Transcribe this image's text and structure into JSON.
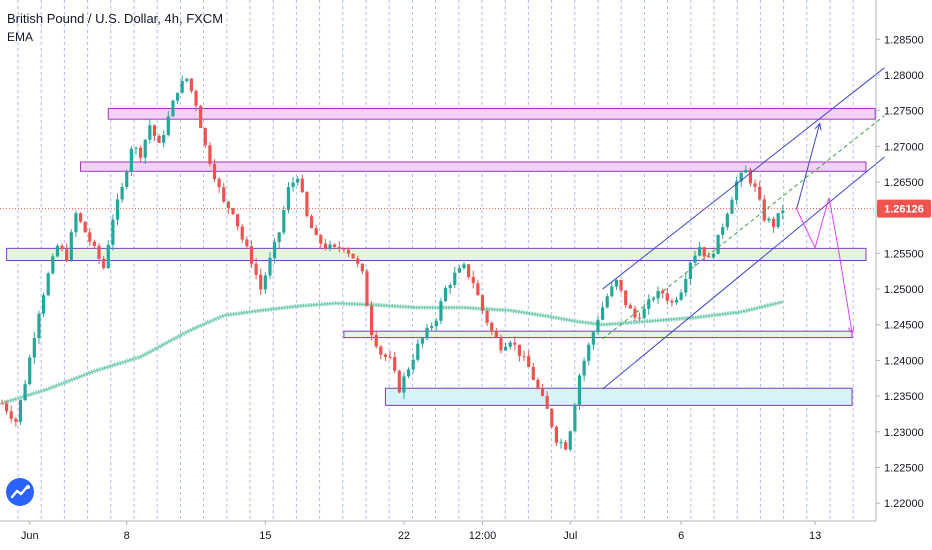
{
  "header": {
    "title": "British Pound / U.S. Dollar, 4h, FXCM",
    "indicator": "EMA"
  },
  "colors": {
    "up": "#26a69a",
    "down": "#ef5350",
    "ema": "#7ecfb5",
    "resistance_fill": "#f3d3f5",
    "resistance_border": "#a531c7",
    "support_fill": "#e3f5dc",
    "support_border": "#7b3fc2",
    "support2_fill": "#d6f3f8",
    "channel": "#3f47c8",
    "projection_blue": "#3f47c8",
    "projection_pink": "#e040fb",
    "current_price": "#ef5350",
    "grid_vertical": "#8fa3ff"
  },
  "chart_data": {
    "type": "candlestick",
    "symbol": "British Pound / U.S. Dollar",
    "interval": "4h",
    "source": "FXCM",
    "indicator": "EMA",
    "ylim": [
      1.2175,
      1.2905
    ],
    "y_ticks": [
      "1.28500",
      "1.28000",
      "1.27500",
      "1.27000",
      "1.26500",
      "1.26000",
      "1.25500",
      "1.25000",
      "1.24500",
      "1.24000",
      "1.23500",
      "1.23000",
      "1.22500",
      "1.22000"
    ],
    "x_labels": [
      {
        "label": "Jun",
        "bar": 6
      },
      {
        "label": "8",
        "bar": 27
      },
      {
        "label": "15",
        "bar": 57
      },
      {
        "label": "22",
        "bar": 87
      },
      {
        "label": "12:00",
        "bar": 104
      },
      {
        "label": "Jul",
        "bar": 123
      },
      {
        "label": "6",
        "bar": 147
      },
      {
        "label": "13",
        "bar": 176
      }
    ],
    "current_price": "1.26126",
    "close_path": [
      [
        0,
        1.234
      ],
      [
        3,
        1.2315
      ],
      [
        5,
        1.237
      ],
      [
        8,
        1.247
      ],
      [
        10,
        1.252
      ],
      [
        12,
        1.256
      ],
      [
        14,
        1.2545
      ],
      [
        16,
        1.2605
      ],
      [
        18,
        1.258
      ],
      [
        20,
        1.2555
      ],
      [
        22,
        1.253
      ],
      [
        24,
        1.26
      ],
      [
        26,
        1.264
      ],
      [
        28,
        1.27
      ],
      [
        30,
        1.269
      ],
      [
        32,
        1.273
      ],
      [
        34,
        1.27
      ],
      [
        36,
        1.274
      ],
      [
        38,
        1.278
      ],
      [
        40,
        1.2795
      ],
      [
        42,
        1.276
      ],
      [
        44,
        1.27
      ],
      [
        46,
        1.266
      ],
      [
        48,
        1.262
      ],
      [
        50,
        1.261
      ],
      [
        52,
        1.257
      ],
      [
        54,
        1.254
      ],
      [
        56,
        1.25
      ],
      [
        58,
        1.254
      ],
      [
        60,
        1.258
      ],
      [
        62,
        1.264
      ],
      [
        64,
        1.266
      ],
      [
        66,
        1.26
      ],
      [
        68,
        1.257
      ],
      [
        70,
        1.256
      ],
      [
        72,
        1.2555
      ],
      [
        74,
        1.256
      ],
      [
        76,
        1.2545
      ],
      [
        78,
        1.252
      ],
      [
        80,
        1.244
      ],
      [
        82,
        1.241
      ],
      [
        84,
        1.24
      ],
      [
        86,
        1.236
      ],
      [
        88,
        1.239
      ],
      [
        90,
        1.242
      ],
      [
        92,
        1.244
      ],
      [
        94,
        1.246
      ],
      [
        96,
        1.25
      ],
      [
        98,
        1.252
      ],
      [
        100,
        1.253
      ],
      [
        102,
        1.251
      ],
      [
        104,
        1.247
      ],
      [
        106,
        1.244
      ],
      [
        108,
        1.242
      ],
      [
        110,
        1.243
      ],
      [
        112,
        1.241
      ],
      [
        114,
        1.239
      ],
      [
        116,
        1.236
      ],
      [
        118,
        1.233
      ],
      [
        120,
        1.229
      ],
      [
        122,
        1.228
      ],
      [
        123,
        1.2305
      ],
      [
        125,
        1.238
      ],
      [
        127,
        1.242
      ],
      [
        129,
        1.246
      ],
      [
        131,
        1.249
      ],
      [
        133,
        1.251
      ],
      [
        135,
        1.248
      ],
      [
        137,
        1.246
      ],
      [
        139,
        1.247
      ],
      [
        141,
        1.249
      ],
      [
        143,
        1.2495
      ],
      [
        145,
        1.248
      ],
      [
        147,
        1.25
      ],
      [
        149,
        1.254
      ],
      [
        151,
        1.256
      ],
      [
        153,
        1.254
      ],
      [
        155,
        1.257
      ],
      [
        157,
        1.261
      ],
      [
        159,
        1.265
      ],
      [
        161,
        1.2665
      ],
      [
        163,
        1.264
      ],
      [
        165,
        1.26
      ],
      [
        167,
        1.259
      ],
      [
        169,
        1.2612
      ]
    ],
    "ema_path": [
      [
        0,
        1.234
      ],
      [
        10,
        1.236
      ],
      [
        20,
        1.2385
      ],
      [
        30,
        1.2405
      ],
      [
        40,
        1.244
      ],
      [
        48,
        1.2463
      ],
      [
        56,
        1.247
      ],
      [
        64,
        1.2476
      ],
      [
        72,
        1.248
      ],
      [
        80,
        1.2478
      ],
      [
        90,
        1.2474
      ],
      [
        100,
        1.2474
      ],
      [
        110,
        1.247
      ],
      [
        118,
        1.2462
      ],
      [
        124,
        1.2455
      ],
      [
        130,
        1.245
      ],
      [
        140,
        1.2455
      ],
      [
        150,
        1.246
      ],
      [
        160,
        1.2468
      ],
      [
        169,
        1.2482
      ]
    ],
    "zones": [
      {
        "label": "resistance",
        "x0": 23,
        "x1": 189,
        "y0": 1.2738,
        "y1": 1.2753
      },
      {
        "label": "resistance",
        "x0": 17,
        "x1": 187,
        "y0": 1.2665,
        "y1": 1.2678
      },
      {
        "label": "support",
        "x0": 1,
        "x1": 187,
        "y0": 1.254,
        "y1": 1.2557
      },
      {
        "label": "support",
        "x0": 74,
        "x1": 184,
        "y0": 1.2432,
        "y1": 1.2441
      },
      {
        "label": "support",
        "x0": 83,
        "x1": 184,
        "y0": 1.2337,
        "y1": 1.2361
      }
    ],
    "channel": {
      "upper": [
        [
          130,
          1.25
        ],
        [
          191,
          1.281
        ]
      ],
      "lower": [
        [
          130,
          1.236
        ],
        [
          191,
          1.2685
        ]
      ],
      "mid": [
        [
          130,
          1.243
        ],
        [
          191,
          1.2743
        ]
      ]
    },
    "projections": {
      "blue": [
        [
          172,
          1.2612
        ],
        [
          177,
          1.2732
        ]
      ],
      "pink_small": [
        [
          172,
          1.2612
        ],
        [
          176,
          1.2558
        ],
        [
          179,
          1.2628
        ],
        [
          181,
          1.2558
        ],
        [
          184,
          1.2438
        ]
      ]
    }
  }
}
